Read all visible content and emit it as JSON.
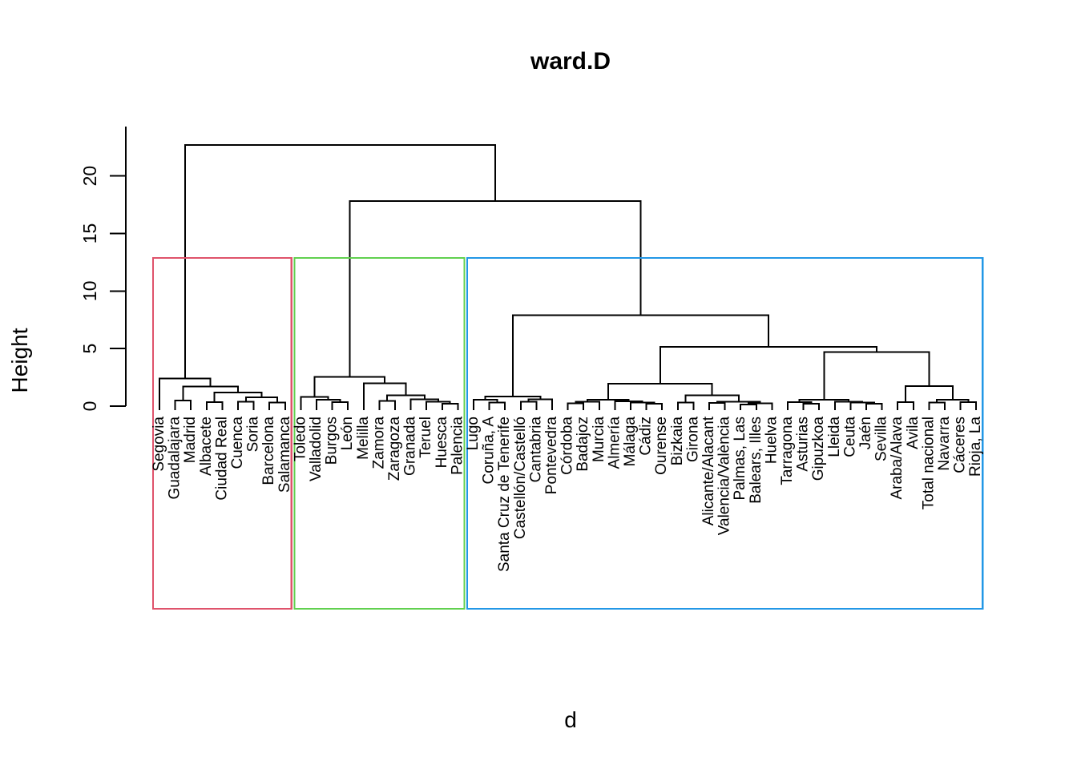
{
  "title": "ward.D",
  "xlabel": "d",
  "ylabel": "Height",
  "chart_data": {
    "type": "dendrogram",
    "method": "ward.D",
    "title": "ward.D",
    "xlabel": "d",
    "ylabel": "Height",
    "ylim": [
      0,
      24
    ],
    "yticks": [
      0,
      5,
      10,
      15,
      20
    ],
    "line_color": "#000000",
    "leaves": [
      "Segovia",
      "Guadalajara",
      "Madrid",
      "Albacete",
      "Ciudad Real",
      "Cuenca",
      "Soria",
      "Barcelona",
      "Salamanca",
      "Toledo",
      "Valladolid",
      "Burgos",
      "León",
      "Melilla",
      "Zamora",
      "Zaragoza",
      "Granada",
      "Teruel",
      "Huesca",
      "Palencia",
      "Lugo",
      "Coruña, A",
      "Santa Cruz de Tenerife",
      "Castellón/Castelló",
      "Cantabria",
      "Pontevedra",
      "Córdoba",
      "Badajoz",
      "Murcia",
      "Almería",
      "Málaga",
      "Cádiz",
      "Ourense",
      "Bizkaia",
      "Girona",
      "Alicante/Alacant",
      "Valencia/València",
      "Palmas, Las",
      "Balears, Illes",
      "Huelva",
      "Tarragona",
      "Asturias",
      "Gipuzkoa",
      "Lleida",
      "Ceuta",
      "Jaén",
      "Sevilla",
      "Araba/Alava",
      "Avila",
      "Total nacional",
      "Navarra",
      "Cáceres",
      "Rioja, La"
    ],
    "clusters": [
      {
        "name": "cluster-1",
        "color": "#DF536B",
        "from": 0,
        "to": 8
      },
      {
        "name": "cluster-2",
        "color": "#61D04F",
        "from": 9,
        "to": 19
      },
      {
        "name": "cluster-3",
        "color": "#2297E6",
        "from": 20,
        "to": 52
      }
    ],
    "tree": {
      "h": 22.7,
      "c": [
        {
          "h": 2.4,
          "c": [
            "Segovia",
            {
              "h": 1.7,
              "c": [
                {
                  "h": 0.5,
                  "c": [
                    "Guadalajara",
                    "Madrid"
                  ]
                },
                {
                  "h": 1.2,
                  "c": [
                    {
                      "h": 0.35,
                      "c": [
                        "Albacete",
                        "Ciudad Real"
                      ]
                    },
                    {
                      "h": 0.75,
                      "c": [
                        {
                          "h": 0.4,
                          "c": [
                            "Cuenca",
                            "Soria"
                          ]
                        },
                        {
                          "h": 0.3,
                          "c": [
                            "Barcelona",
                            "Salamanca"
                          ]
                        }
                      ]
                    }
                  ]
                }
              ]
            }
          ]
        },
        {
          "h": 17.8,
          "c": [
            {
              "h": 2.55,
              "c": [
                {
                  "h": 0.8,
                  "c": [
                    "Toledo",
                    {
                      "h": 0.55,
                      "c": [
                        "Valladolid",
                        {
                          "h": 0.35,
                          "c": [
                            "Burgos",
                            "León"
                          ]
                        }
                      ]
                    }
                  ]
                },
                {
                  "h": 2.0,
                  "c": [
                    "Melilla",
                    {
                      "h": 0.95,
                      "c": [
                        {
                          "h": 0.45,
                          "c": [
                            "Zamora",
                            "Zaragoza"
                          ]
                        },
                        {
                          "h": 0.6,
                          "c": [
                            "Granada",
                            {
                              "h": 0.4,
                              "c": [
                                "Teruel",
                                {
                                  "h": 0.2,
                                  "c": [
                                    "Huesca",
                                    "Palencia"
                                  ]
                                }
                              ]
                            }
                          ]
                        }
                      ]
                    }
                  ]
                }
              ]
            },
            {
              "h": 7.9,
              "c": [
                {
                  "h": 0.85,
                  "c": [
                    {
                      "h": 0.55,
                      "c": [
                        "Lugo",
                        {
                          "h": 0.3,
                          "c": [
                            "Coruña, A",
                            "Santa Cruz de Tenerife"
                          ]
                        }
                      ]
                    },
                    {
                      "h": 0.6,
                      "c": [
                        {
                          "h": 0.4,
                          "c": [
                            "Castellón/Castelló",
                            "Cantabria"
                          ]
                        },
                        "Pontevedra"
                      ]
                    }
                  ]
                },
                {
                  "h": 5.15,
                  "c": [
                    {
                      "h": 1.95,
                      "c": [
                        {
                          "h": 0.55,
                          "c": [
                            {
                              "h": 0.4,
                              "c": [
                                {
                                  "h": 0.25,
                                  "c": [
                                    "Córdoba",
                                    "Badajoz"
                                  ]
                                },
                                "Murcia"
                              ]
                            },
                            {
                              "h": 0.42,
                              "c": [
                                "Almería",
                                {
                                  "h": 0.3,
                                  "c": [
                                    "Málaga",
                                    {
                                      "h": 0.2,
                                      "c": [
                                        "Cádiz",
                                        "Ourense"
                                      ]
                                    }
                                  ]
                                }
                              ]
                            }
                          ]
                        },
                        {
                          "h": 0.95,
                          "c": [
                            {
                              "h": 0.3,
                              "c": [
                                "Bizkaia",
                                "Girona"
                              ]
                            },
                            {
                              "h": 0.4,
                              "c": [
                                {
                                  "h": 0.28,
                                  "c": [
                                    "Alicante/Alacant",
                                    "Valencia/València"
                                  ]
                                },
                                {
                                  "h": 0.25,
                                  "c": [
                                    {
                                      "h": 0.15,
                                      "c": [
                                        "Palmas, Las",
                                        "Balears, Illes"
                                      ]
                                    },
                                    "Huelva"
                                  ]
                                }
                              ]
                            }
                          ]
                        }
                      ]
                    },
                    {
                      "h": 4.7,
                      "c": [
                        {
                          "h": 0.55,
                          "c": [
                            {
                              "h": 0.35,
                              "c": [
                                "Tarragona",
                                {
                                  "h": 0.22,
                                  "c": [
                                    "Asturias",
                                    "Gipuzkoa"
                                  ]
                                }
                              ]
                            },
                            {
                              "h": 0.4,
                              "c": [
                                "Lleida",
                                {
                                  "h": 0.3,
                                  "c": [
                                    "Ceuta",
                                    {
                                      "h": 0.2,
                                      "c": [
                                        "Jaén",
                                        "Sevilla"
                                      ]
                                    }
                                  ]
                                }
                              ]
                            }
                          ]
                        },
                        {
                          "h": 1.75,
                          "c": [
                            {
                              "h": 0.35,
                              "c": [
                                "Araba/Alava",
                                "Avila"
                              ]
                            },
                            {
                              "h": 0.55,
                              "c": [
                                {
                                  "h": 0.3,
                                  "c": [
                                    "Total nacional",
                                    "Navarra"
                                  ]
                                },
                                {
                                  "h": 0.35,
                                  "c": [
                                    "Cáceres",
                                    "Rioja, La"
                                  ]
                                }
                              ]
                            }
                          ]
                        }
                      ]
                    }
                  ]
                }
              ]
            }
          ]
        }
      ]
    }
  }
}
